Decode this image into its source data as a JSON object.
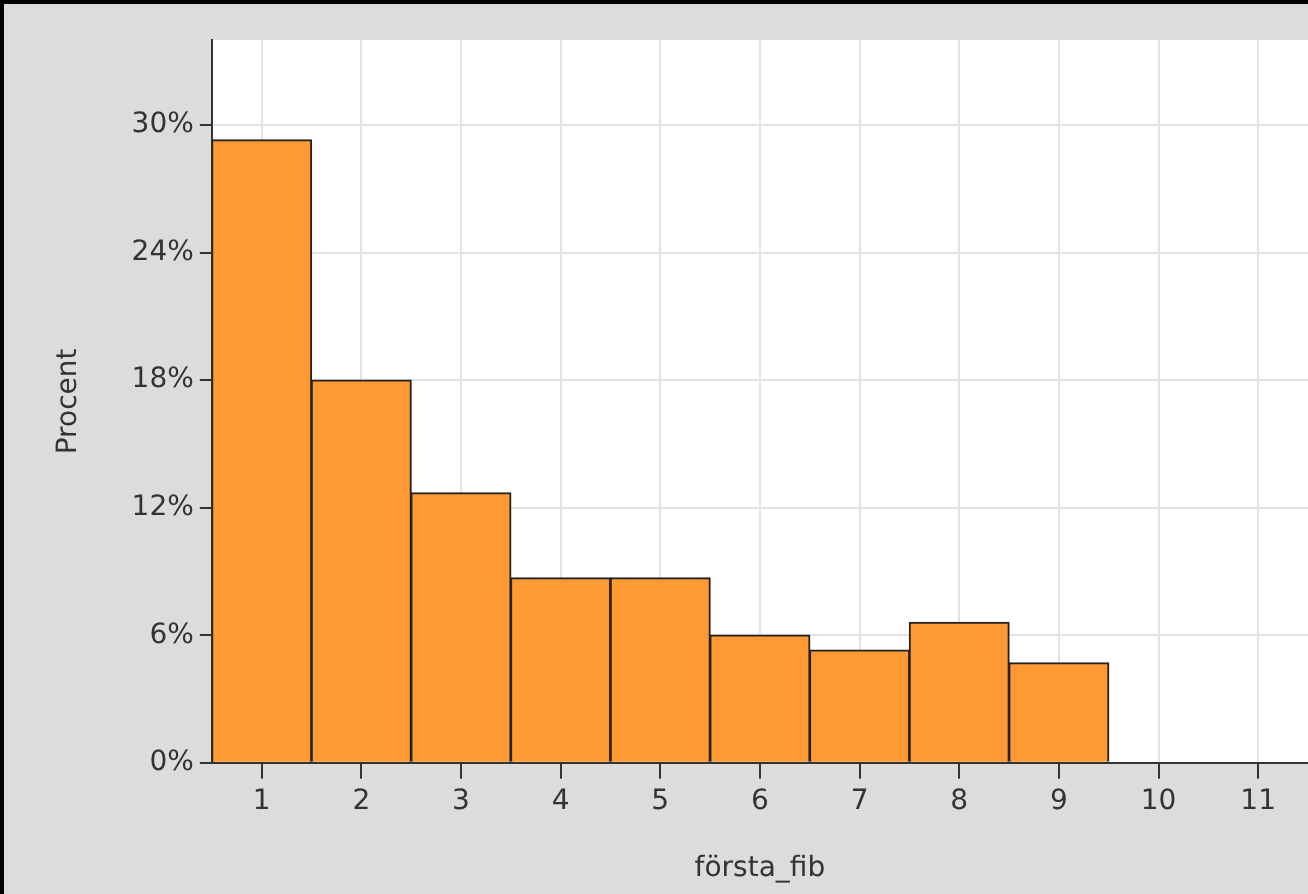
{
  "chart_data": {
    "type": "histogram",
    "xlabel": "första_fib",
    "ylabel": "Procent",
    "bins": [
      0.5,
      1.5,
      2.5,
      3.5,
      4.5,
      5.5,
      6.5,
      7.5,
      8.5,
      9.5
    ],
    "values": [
      29.3,
      18.0,
      12.7,
      8.7,
      8.7,
      6.0,
      5.3,
      6.6,
      4.7
    ],
    "color": "#ff9933",
    "xlim": [
      0.5,
      11.5
    ],
    "xticks": [
      1,
      2,
      3,
      4,
      5,
      6,
      7,
      8,
      9,
      10,
      11
    ],
    "ylim": [
      0,
      34
    ],
    "yticks": [
      {
        "value": 0,
        "label": "0%"
      },
      {
        "value": 6,
        "label": "6%"
      },
      {
        "value": 12,
        "label": "12%"
      },
      {
        "value": 18,
        "label": "18%"
      },
      {
        "value": 24,
        "label": "24%"
      },
      {
        "value": 30,
        "label": "30%"
      }
    ],
    "grid": true
  }
}
